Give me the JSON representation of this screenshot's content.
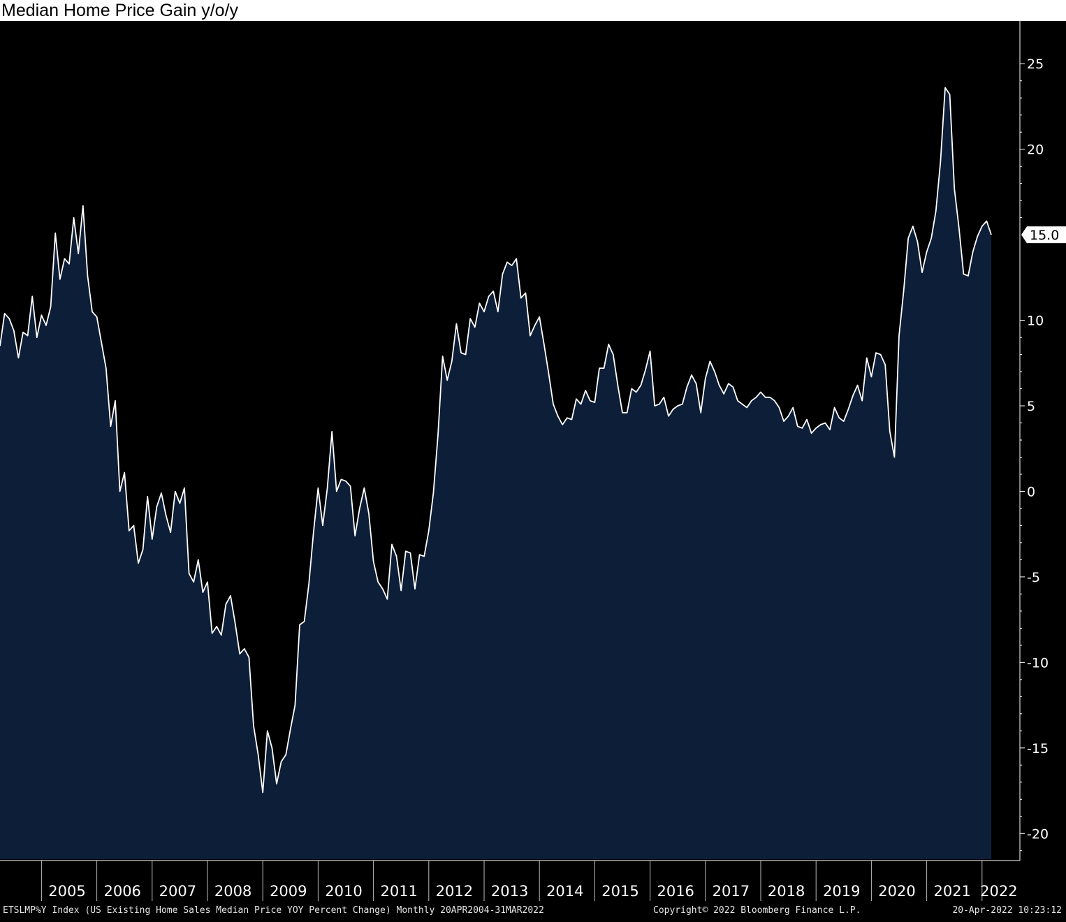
{
  "chart_data": {
    "type": "area",
    "title": "Median Home Price Gain y/o/y",
    "x_start": "2004-04",
    "x_end": "2022-03",
    "frequency": "monthly",
    "y_ticks": [
      25,
      20,
      10,
      5,
      0,
      -5,
      -10,
      -15,
      -20
    ],
    "y_tick_labels": [
      "25",
      "20",
      "10",
      "5",
      "0",
      "-5",
      "-10",
      "-15",
      "-20"
    ],
    "ylim": [
      -21.5,
      27.5
    ],
    "x_tick_labels": [
      "2005",
      "2006",
      "2007",
      "2008",
      "2009",
      "2010",
      "2011",
      "2012",
      "2013",
      "2014",
      "2015",
      "2016",
      "2017",
      "2018",
      "2019",
      "2020",
      "2021",
      "2022"
    ],
    "last_value_label": "15.0",
    "grid": false,
    "colors": {
      "fill": "#0d1e38",
      "line": "#ffffff",
      "background": "#000000",
      "axis": "#ffffff"
    },
    "series": [
      {
        "values": [
          8.5,
          10.4,
          10.1,
          9.4,
          7.8,
          9.3,
          9.1,
          11.4,
          9.0,
          10.3,
          9.7,
          10.8,
          15.1,
          12.4,
          13.6,
          13.3,
          16.0,
          13.9,
          16.7,
          12.6,
          10.5,
          10.2,
          8.7,
          7.2,
          3.8,
          5.3,
          0.0,
          1.1,
          -2.3,
          -2.0,
          -4.2,
          -3.4,
          -0.3,
          -2.8,
          -0.9,
          -0.1,
          -1.4,
          -2.4,
          0.0,
          -0.7,
          0.2,
          -4.8,
          -5.3,
          -4.0,
          -5.9,
          -5.3,
          -8.3,
          -7.9,
          -8.4,
          -6.6,
          -6.1,
          -7.7,
          -9.5,
          -9.2,
          -9.7,
          -13.7,
          -15.4,
          -17.6,
          -14.0,
          -15.0,
          -17.1,
          -15.8,
          -15.4,
          -13.9,
          -12.5,
          -7.8,
          -7.6,
          -5.4,
          -2.4,
          0.2,
          -2.0,
          0.2,
          3.5,
          0.0,
          0.7,
          0.6,
          0.3,
          -2.6,
          -1.0,
          0.2,
          -1.3,
          -4.1,
          -5.3,
          -5.7,
          -6.3,
          -3.1,
          -3.8,
          -5.8,
          -3.5,
          -3.6,
          -5.7,
          -3.7,
          -3.8,
          -2.3,
          -0.1,
          3.3,
          7.9,
          6.5,
          7.6,
          9.8,
          8.1,
          8.0,
          10.1,
          9.6,
          11.0,
          10.5,
          11.4,
          11.7,
          10.5,
          12.7,
          13.4,
          13.2,
          13.6,
          11.3,
          11.6,
          9.1,
          9.7,
          10.2,
          8.6,
          6.9,
          5.1,
          4.4,
          3.9,
          4.3,
          4.2,
          5.4,
          5.1,
          5.9,
          5.3,
          5.2,
          7.2,
          7.2,
          8.6,
          8.0,
          6.2,
          4.6,
          4.6,
          6.0,
          5.8,
          6.2,
          7.1,
          8.2,
          5.0,
          5.1,
          5.5,
          4.4,
          4.8,
          5.0,
          5.1,
          6.1,
          6.8,
          6.3,
          4.6,
          6.6,
          7.6,
          7.0,
          6.2,
          5.7,
          6.3,
          6.1,
          5.3,
          5.1,
          4.9,
          5.3,
          5.5,
          5.8,
          5.5,
          5.5,
          5.3,
          4.9,
          4.1,
          4.4,
          4.9,
          3.8,
          3.7,
          4.2,
          3.4,
          3.7,
          3.9,
          4.0,
          3.6,
          4.9,
          4.3,
          4.1,
          4.8,
          5.6,
          6.2,
          5.3,
          7.8,
          6.7,
          8.1,
          8.0,
          7.4,
          3.5,
          2.0,
          9.1,
          11.7,
          14.8,
          15.5,
          14.6,
          12.8,
          14.0,
          14.8,
          16.4,
          19.3,
          23.6,
          23.2,
          17.7,
          15.4,
          12.7,
          12.6,
          14.0,
          14.9,
          15.5,
          15.8,
          15.0
        ]
      }
    ]
  },
  "footer": {
    "left": "ETSLMP%Y Index (US Existing Home Sales Median Price YOY Percent Change)  Monthly 20APR2004-31MAR2022",
    "middle": "Copyright© 2022 Bloomberg Finance L.P.",
    "right": "20-Apr-2022 10:23:12"
  }
}
